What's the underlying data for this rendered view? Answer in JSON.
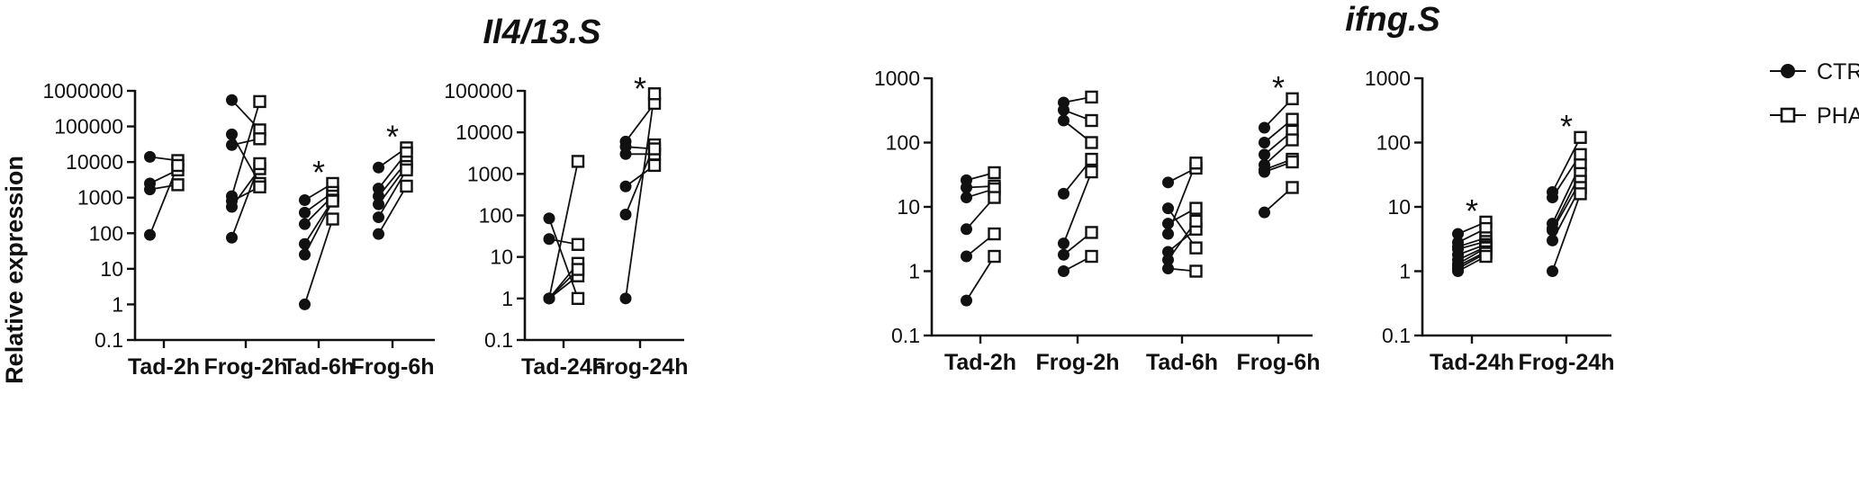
{
  "titles": {
    "il4": "Il4/13.S",
    "ifng": "ifng.S"
  },
  "y_axis_label": "Relative expression",
  "legend": [
    {
      "label": "CTR",
      "marker": "filled-circle"
    },
    {
      "label": "PHA",
      "marker": "open-square"
    }
  ],
  "colors": {
    "ink": "#111111",
    "background": "#ffffff"
  },
  "chart_data": [
    {
      "type": "scatter",
      "subtype": "paired-dot-plot",
      "gene": "Il4/13.S",
      "yscale": "log",
      "ylim": [
        0.1,
        1000000
      ],
      "yticks": [
        "0.1",
        "1",
        "10",
        "100",
        "1000",
        "10000",
        "100000",
        "1000000"
      ],
      "categories": [
        "Tad-2h",
        "Frog-2h",
        "Tad-6h",
        "Frog-6h"
      ],
      "pairs": [
        {
          "category": "Tad-2h",
          "CTR": [
            14000,
            2500,
            1700,
            90
          ],
          "PHA": [
            11000,
            6000,
            2300,
            8000
          ]
        },
        {
          "category": "Frog-2h",
          "CTR": [
            550000,
            60000,
            30000,
            1100,
            800,
            550,
            75
          ],
          "PHA": [
            80000,
            2500,
            45000,
            500000,
            2000,
            6500,
            9000
          ]
        },
        {
          "category": "Tad-6h",
          "CTR": [
            850,
            380,
            180,
            50,
            25,
            1
          ],
          "PHA": [
            2500,
            1400,
            1100,
            850,
            800,
            250
          ]
        },
        {
          "category": "Frog-6h",
          "CTR": [
            7000,
            1800,
            1100,
            650,
            280,
            95
          ],
          "PHA": [
            25000,
            18000,
            10000,
            7500,
            6000,
            2100
          ]
        }
      ],
      "significant": [
        "Tad-6h",
        "Frog-6h"
      ]
    },
    {
      "type": "scatter",
      "subtype": "paired-dot-plot",
      "gene": "Il4/13.S",
      "yscale": "log",
      "ylim": [
        0.1,
        100000
      ],
      "yticks": [
        "0.1",
        "1",
        "10",
        "100",
        "1000",
        "10000",
        "100000"
      ],
      "categories": [
        "Tad-24h",
        "Frog-24h"
      ],
      "pairs": [
        {
          "category": "Tad-24h",
          "CTR": [
            85,
            27,
            1,
            1,
            1,
            1
          ],
          "PHA": [
            1,
            20,
            2000,
            3.5,
            7,
            5
          ]
        },
        {
          "category": "Frog-24h",
          "CTR": [
            6000,
            3000,
            500,
            105,
            1,
            4500
          ],
          "PHA": [
            50000,
            3000,
            1600,
            5000,
            85000,
            4000
          ]
        }
      ],
      "significant": [
        "Frog-24h"
      ]
    },
    {
      "type": "scatter",
      "subtype": "paired-dot-plot",
      "gene": "ifng.S",
      "yscale": "log",
      "ylim": [
        0.1,
        1000
      ],
      "yticks": [
        "0.1",
        "1",
        "10",
        "100",
        "1000"
      ],
      "categories": [
        "Tad-2h",
        "Frog-2h",
        "Tad-6h",
        "Frog-6h"
      ],
      "pairs": [
        {
          "category": "Tad-2h",
          "CTR": [
            26,
            20,
            14,
            4.5,
            1.7,
            0.35
          ],
          "PHA": [
            34,
            21,
            19,
            14,
            3.8,
            1.7
          ]
        },
        {
          "category": "Frog-2h",
          "CTR": [
            420,
            320,
            220,
            16,
            2.7,
            1.8,
            1
          ],
          "PHA": [
            510,
            220,
            100,
            55,
            35,
            4,
            1.7
          ]
        },
        {
          "category": "Tad-6h",
          "CTR": [
            24,
            9.5,
            5.5,
            3.8,
            2,
            1.5,
            1.1
          ],
          "PHA": [
            40,
            2.3,
            9.5,
            48,
            4.5,
            6,
            1
          ]
        },
        {
          "category": "Frog-6h",
          "CTR": [
            170,
            100,
            65,
            45,
            38,
            35,
            8.2
          ],
          "PHA": [
            480,
            230,
            150,
            110,
            55,
            50,
            20
          ]
        }
      ],
      "significant": [
        "Frog-6h"
      ]
    },
    {
      "type": "scatter",
      "subtype": "paired-dot-plot",
      "gene": "ifng.S",
      "yscale": "log",
      "ylim": [
        0.1,
        1000
      ],
      "yticks": [
        "0.1",
        "1",
        "10",
        "100",
        "1000"
      ],
      "categories": [
        "Tad-24h",
        "Frog-24h"
      ],
      "pairs": [
        {
          "category": "Tad-24h",
          "CTR": [
            3.8,
            2.8,
            2.4,
            2.2,
            1.8,
            1.5,
            1.3,
            1.2,
            1.1,
            1
          ],
          "PHA": [
            5.8,
            4.6,
            3.3,
            2.9,
            2.6,
            2.4,
            2.3,
            2,
            1.9,
            1.7
          ]
        },
        {
          "category": "Frog-24h",
          "CTR": [
            17,
            14,
            5.5,
            4.6,
            4.3,
            3,
            1
          ],
          "PHA": [
            120,
            65,
            45,
            33,
            25,
            20,
            16
          ]
        }
      ],
      "significant": [
        "Tad-24h",
        "Frog-24h"
      ]
    }
  ]
}
